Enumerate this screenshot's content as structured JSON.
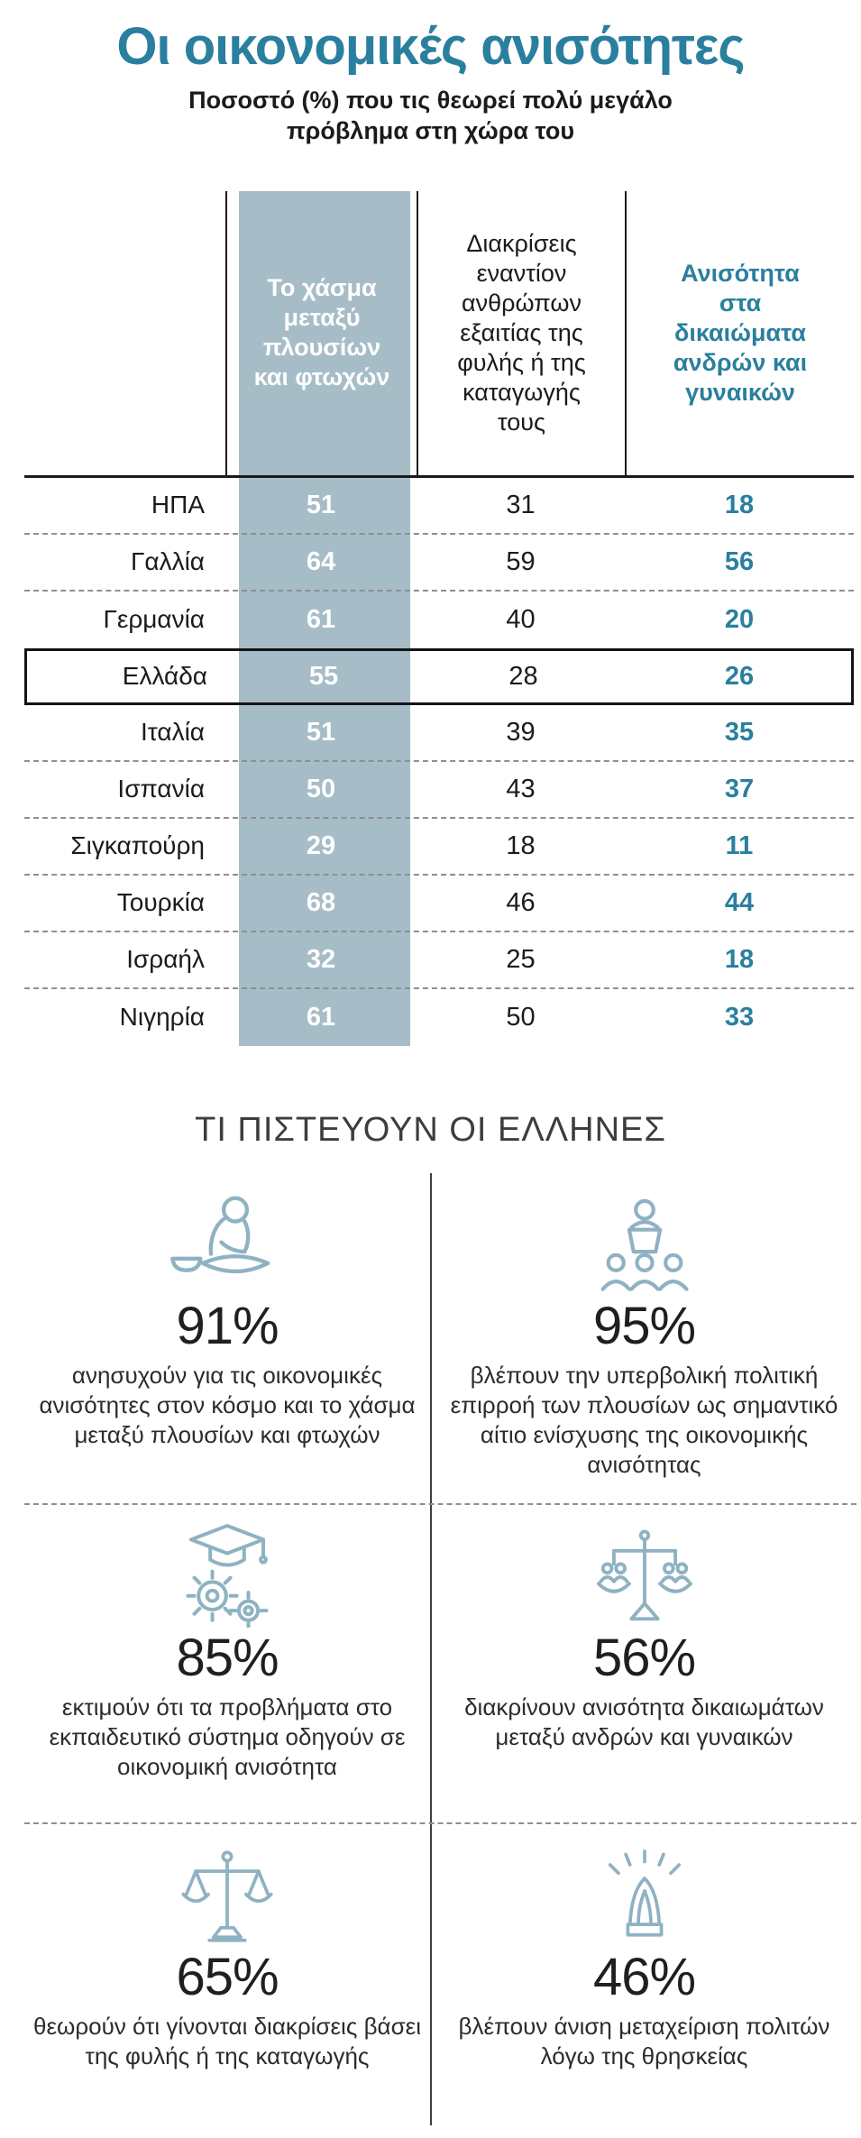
{
  "page": {
    "title": "Οι οικονομικές ανισότητες",
    "subtitle": "Ποσοστό (%) που τις θεωρεί πολύ μεγάλο πρόβλημα στη χώρα του"
  },
  "colors": {
    "accent": "#2a7f9f",
    "slate": "#a6bdc7",
    "icon": "#8fb2c2",
    "ink": "#1b1b1b",
    "divider": "#8f8f8f",
    "highlight_border": "#141414"
  },
  "chart_data": [
    {
      "type": "table",
      "title": "Ποσοστό (%) που τις θεωρεί πολύ μεγάλο πρόβλημα στη χώρα του",
      "columns": [
        "Το χάσμα μεταξύ πλουσίων και φτωχών",
        "Διακρίσεις εναντίον ανθρώπων εξαιτίας της φυλής ή της καταγωγής τους",
        "Ανισότητα στα δικαιώματα ανδρών και γυναικών"
      ],
      "rows": [
        {
          "country": "ΗΠΑ",
          "values": [
            51,
            31,
            18
          ],
          "highlight": false
        },
        {
          "country": "Γαλλία",
          "values": [
            64,
            59,
            56
          ],
          "highlight": false
        },
        {
          "country": "Γερμανία",
          "values": [
            61,
            40,
            20
          ],
          "highlight": false
        },
        {
          "country": "Ελλάδα",
          "values": [
            55,
            28,
            26
          ],
          "highlight": true
        },
        {
          "country": "Ιταλία",
          "values": [
            51,
            39,
            35
          ],
          "highlight": false
        },
        {
          "country": "Ισπανία",
          "values": [
            50,
            43,
            37
          ],
          "highlight": false
        },
        {
          "country": "Σιγκαπούρη",
          "values": [
            29,
            18,
            11
          ],
          "highlight": false
        },
        {
          "country": "Τουρκία",
          "values": [
            68,
            46,
            44
          ],
          "highlight": false
        },
        {
          "country": "Ισραήλ",
          "values": [
            32,
            25,
            18
          ],
          "highlight": false
        },
        {
          "country": "Νιγηρία",
          "values": [
            61,
            50,
            33
          ],
          "highlight": false
        }
      ],
      "highlighted_row": "Ελλάδα"
    },
    {
      "type": "table",
      "title": "ΤΙ ΠΙΣΤΕΥΟΥΝ ΟΙ ΕΛΛΗΝΕΣ",
      "items": [
        {
          "icon": "beggar-icon",
          "value": "91%",
          "text": "ανησυχούν για τις οικονομικές ανισότητες στον κόσμο και το χάσμα μεταξύ πλουσίων και φτωχών"
        },
        {
          "icon": "politician-icon",
          "value": "95%",
          "text": "βλέπουν την υπερβολική πολιτική επιρροή των πλουσίων ως σημαντικό αίτιο ενίσχυσης της οικονομικής ανισότητας"
        },
        {
          "icon": "education-gears-icon",
          "value": "85%",
          "text": "εκτιμούν ότι τα προβλήματα στο εκπαιδευτικό σύστημα οδηγούν σε οικονομική ανισότητα"
        },
        {
          "icon": "gender-balance-icon",
          "value": "56%",
          "text": "διακρίνουν ανισότητα δικαιωμάτων μεταξύ ανδρών και γυναικών"
        },
        {
          "icon": "justice-scale-icon",
          "value": "65%",
          "text": "θεωρούν ότι γίνονται διακρίσεις βάσει της φυλής ή της καταγωγής"
        },
        {
          "icon": "praying-hands-icon",
          "value": "46%",
          "text": "βλέπουν άνιση μεταχείριση πολιτών λόγω της θρησκείας"
        }
      ]
    }
  ]
}
